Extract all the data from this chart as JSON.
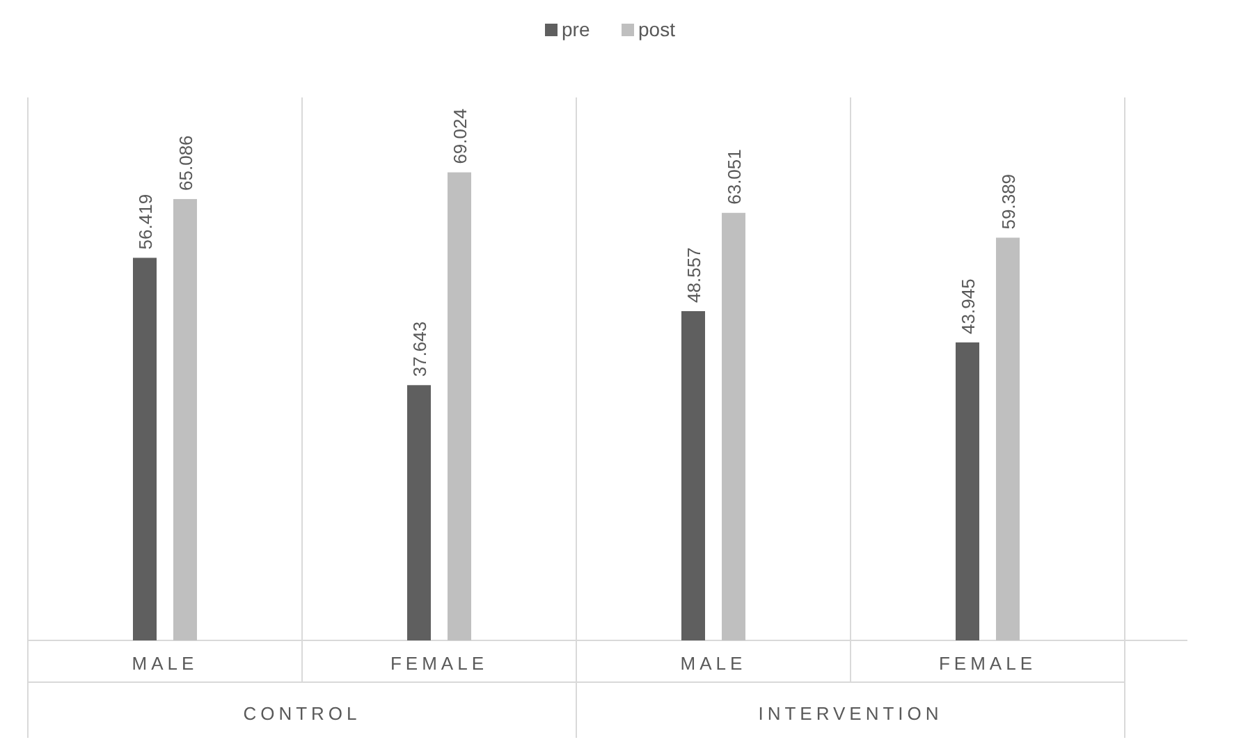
{
  "chart_data": {
    "type": "bar",
    "categories": [
      "MALE",
      "FEMALE",
      "MALE",
      "FEMALE"
    ],
    "series": [
      {
        "name": "pre",
        "color": "#5f5f5f",
        "values": [
          56.419,
          37.643,
          48.557,
          43.945
        ]
      },
      {
        "name": "post",
        "color": "#bfbfbf",
        "values": [
          65.086,
          69.024,
          63.051,
          59.389
        ]
      }
    ],
    "annotations": [
      "CONTROL",
      "INTERVENTION"
    ],
    "data_labels": true,
    "legend": "top",
    "grid": "x"
  }
}
